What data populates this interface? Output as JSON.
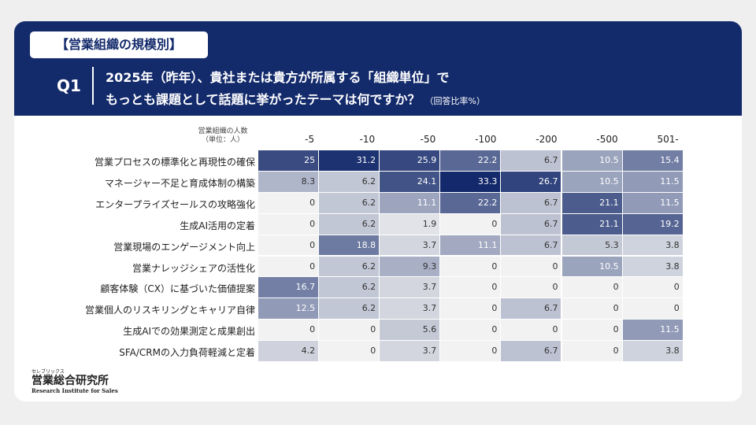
{
  "header": {
    "tag": "【営業組織の規模別】",
    "question_no": "Q1",
    "question_lines": [
      "2025年（昨年）、貴社または貴方が所属する「組織単位」で",
      "もっとも課題として話題に挙がったテーマは何ですか？"
    ],
    "note": "（回答比率%）"
  },
  "table": {
    "corner": [
      "営業組織の人数",
      "（単位：人）"
    ],
    "columns": [
      "-5",
      "-10",
      "-50",
      "-100",
      "-200",
      "-500",
      "501-"
    ],
    "rows": [
      {
        "label": "営業プロセスの標準化と再現性の確保",
        "values": [
          25,
          31.2,
          25.9,
          22.2,
          6.7,
          10.5,
          15.4
        ]
      },
      {
        "label": "マネージャー不足と育成体制の構築",
        "values": [
          8.3,
          6.2,
          24.1,
          33.3,
          26.7,
          10.5,
          11.5
        ]
      },
      {
        "label": "エンタープライズセールスの攻略強化",
        "values": [
          0,
          6.2,
          11.1,
          22.2,
          6.7,
          21.1,
          11.5
        ]
      },
      {
        "label": "生成AI活用の定着",
        "values": [
          0,
          6.2,
          1.9,
          0,
          6.7,
          21.1,
          19.2
        ]
      },
      {
        "label": "営業現場のエンゲージメント向上",
        "values": [
          0,
          18.8,
          3.7,
          11.1,
          6.7,
          5.3,
          3.8
        ]
      },
      {
        "label": "営業ナレッジシェアの活性化",
        "values": [
          0,
          6.2,
          9.3,
          0,
          0,
          10.5,
          3.8
        ]
      },
      {
        "label": "顧客体験（CX）に基づいた価値提案",
        "values": [
          16.7,
          6.2,
          3.7,
          0,
          0,
          0,
          0
        ]
      },
      {
        "label": "営業個人のリスキリングとキャリア自律",
        "values": [
          12.5,
          6.2,
          3.7,
          0,
          6.7,
          0,
          0
        ]
      },
      {
        "label": "生成AIでの効果測定と成果創出",
        "values": [
          0,
          0,
          5.6,
          0,
          0,
          0,
          11.5
        ]
      },
      {
        "label": "SFA/CRMの入力負荷軽減と定着",
        "values": [
          4.2,
          0,
          3.7,
          0,
          6.7,
          0,
          3.8
        ]
      }
    ]
  },
  "logo": {
    "kana": "セレブリックス",
    "name": "営業総合研究所",
    "sub": "Research Institute for Sales"
  }
}
